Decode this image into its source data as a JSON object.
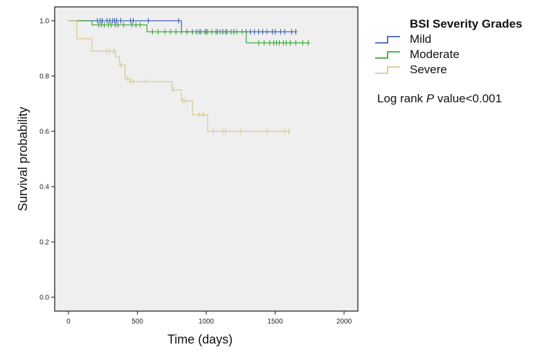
{
  "chart_data": {
    "type": "line",
    "subtype": "kaplan-meier",
    "xlabel": "Time (days)",
    "ylabel": "Survival probability",
    "xlim": [
      -100,
      2100
    ],
    "ylim": [
      -0.05,
      1.05
    ],
    "x_ticks": [
      0,
      500,
      1000,
      1500,
      2000
    ],
    "x_tick_labels": [
      "0",
      "500",
      "1000",
      "1500",
      "2000"
    ],
    "y_ticks": [
      0.0,
      0.2,
      0.4,
      0.6,
      0.8,
      1.0
    ],
    "y_tick_labels": [
      "0.0",
      "0.2",
      "0.4",
      "0.6",
      "0.8",
      "1.0"
    ],
    "grid": false,
    "legend": {
      "title": "BSI Severity Grades",
      "position": "top-right-outside"
    },
    "annotation_parts": [
      "Log rank ",
      "P",
      " value<0.001"
    ],
    "series": [
      {
        "name": "Mild",
        "color": "#3f5fb4",
        "steps": [
          [
            0,
            1.0
          ],
          [
            820,
            0.96
          ],
          [
            1650,
            0.96
          ]
        ],
        "censored": [
          [
            210,
            1.0
          ],
          [
            230,
            1.0
          ],
          [
            245,
            1.0
          ],
          [
            280,
            1.0
          ],
          [
            300,
            1.0
          ],
          [
            320,
            1.0
          ],
          [
            335,
            1.0
          ],
          [
            350,
            1.0
          ],
          [
            380,
            1.0
          ],
          [
            450,
            1.0
          ],
          [
            470,
            1.0
          ],
          [
            580,
            1.0
          ],
          [
            800,
            1.0
          ],
          [
            860,
            0.96
          ],
          [
            900,
            0.96
          ],
          [
            930,
            0.96
          ],
          [
            960,
            0.96
          ],
          [
            1000,
            0.96
          ],
          [
            1040,
            0.96
          ],
          [
            1080,
            0.96
          ],
          [
            1120,
            0.96
          ],
          [
            1150,
            0.96
          ],
          [
            1200,
            0.96
          ],
          [
            1290,
            0.96
          ],
          [
            1320,
            0.96
          ],
          [
            1350,
            0.96
          ],
          [
            1380,
            0.96
          ],
          [
            1410,
            0.96
          ],
          [
            1440,
            0.96
          ],
          [
            1480,
            0.96
          ],
          [
            1500,
            0.96
          ],
          [
            1540,
            0.96
          ],
          [
            1570,
            0.96
          ],
          [
            1620,
            0.96
          ],
          [
            1650,
            0.96
          ]
        ]
      },
      {
        "name": "Moderate",
        "color": "#3aa63a",
        "steps": [
          [
            0,
            1.0
          ],
          [
            170,
            0.985
          ],
          [
            570,
            0.96
          ],
          [
            1290,
            0.92
          ],
          [
            1750,
            0.92
          ]
        ],
        "censored": [
          [
            220,
            0.985
          ],
          [
            240,
            0.985
          ],
          [
            260,
            0.985
          ],
          [
            290,
            0.985
          ],
          [
            310,
            0.985
          ],
          [
            340,
            0.985
          ],
          [
            360,
            0.985
          ],
          [
            400,
            0.985
          ],
          [
            460,
            0.985
          ],
          [
            490,
            0.985
          ],
          [
            520,
            0.985
          ],
          [
            610,
            0.96
          ],
          [
            650,
            0.96
          ],
          [
            700,
            0.96
          ],
          [
            740,
            0.96
          ],
          [
            780,
            0.96
          ],
          [
            820,
            0.96
          ],
          [
            860,
            0.96
          ],
          [
            900,
            0.96
          ],
          [
            950,
            0.96
          ],
          [
            990,
            0.96
          ],
          [
            1010,
            0.96
          ],
          [
            1040,
            0.96
          ],
          [
            1070,
            0.96
          ],
          [
            1100,
            0.96
          ],
          [
            1140,
            0.96
          ],
          [
            1180,
            0.96
          ],
          [
            1220,
            0.96
          ],
          [
            1260,
            0.96
          ],
          [
            1380,
            0.92
          ],
          [
            1420,
            0.92
          ],
          [
            1460,
            0.92
          ],
          [
            1490,
            0.92
          ],
          [
            1510,
            0.92
          ],
          [
            1530,
            0.92
          ],
          [
            1560,
            0.92
          ],
          [
            1580,
            0.92
          ],
          [
            1610,
            0.92
          ],
          [
            1650,
            0.92
          ],
          [
            1700,
            0.92
          ],
          [
            1740,
            0.92
          ]
        ]
      },
      {
        "name": "Severe",
        "color": "#d8c88e",
        "steps": [
          [
            0,
            1.0
          ],
          [
            60,
            0.935
          ],
          [
            170,
            0.89
          ],
          [
            340,
            0.87
          ],
          [
            370,
            0.84
          ],
          [
            410,
            0.79
          ],
          [
            450,
            0.78
          ],
          [
            750,
            0.75
          ],
          [
            820,
            0.71
          ],
          [
            900,
            0.66
          ],
          [
            1010,
            0.6
          ],
          [
            1600,
            0.6
          ]
        ],
        "censored": [
          [
            280,
            0.89
          ],
          [
            300,
            0.89
          ],
          [
            330,
            0.89
          ],
          [
            380,
            0.84
          ],
          [
            430,
            0.79
          ],
          [
            450,
            0.78
          ],
          [
            470,
            0.78
          ],
          [
            560,
            0.78
          ],
          [
            760,
            0.75
          ],
          [
            830,
            0.71
          ],
          [
            850,
            0.71
          ],
          [
            950,
            0.66
          ],
          [
            980,
            0.66
          ],
          [
            1050,
            0.6
          ],
          [
            1120,
            0.6
          ],
          [
            1140,
            0.6
          ],
          [
            1250,
            0.6
          ],
          [
            1440,
            0.6
          ],
          [
            1570,
            0.6
          ],
          [
            1600,
            0.6
          ]
        ]
      }
    ]
  }
}
